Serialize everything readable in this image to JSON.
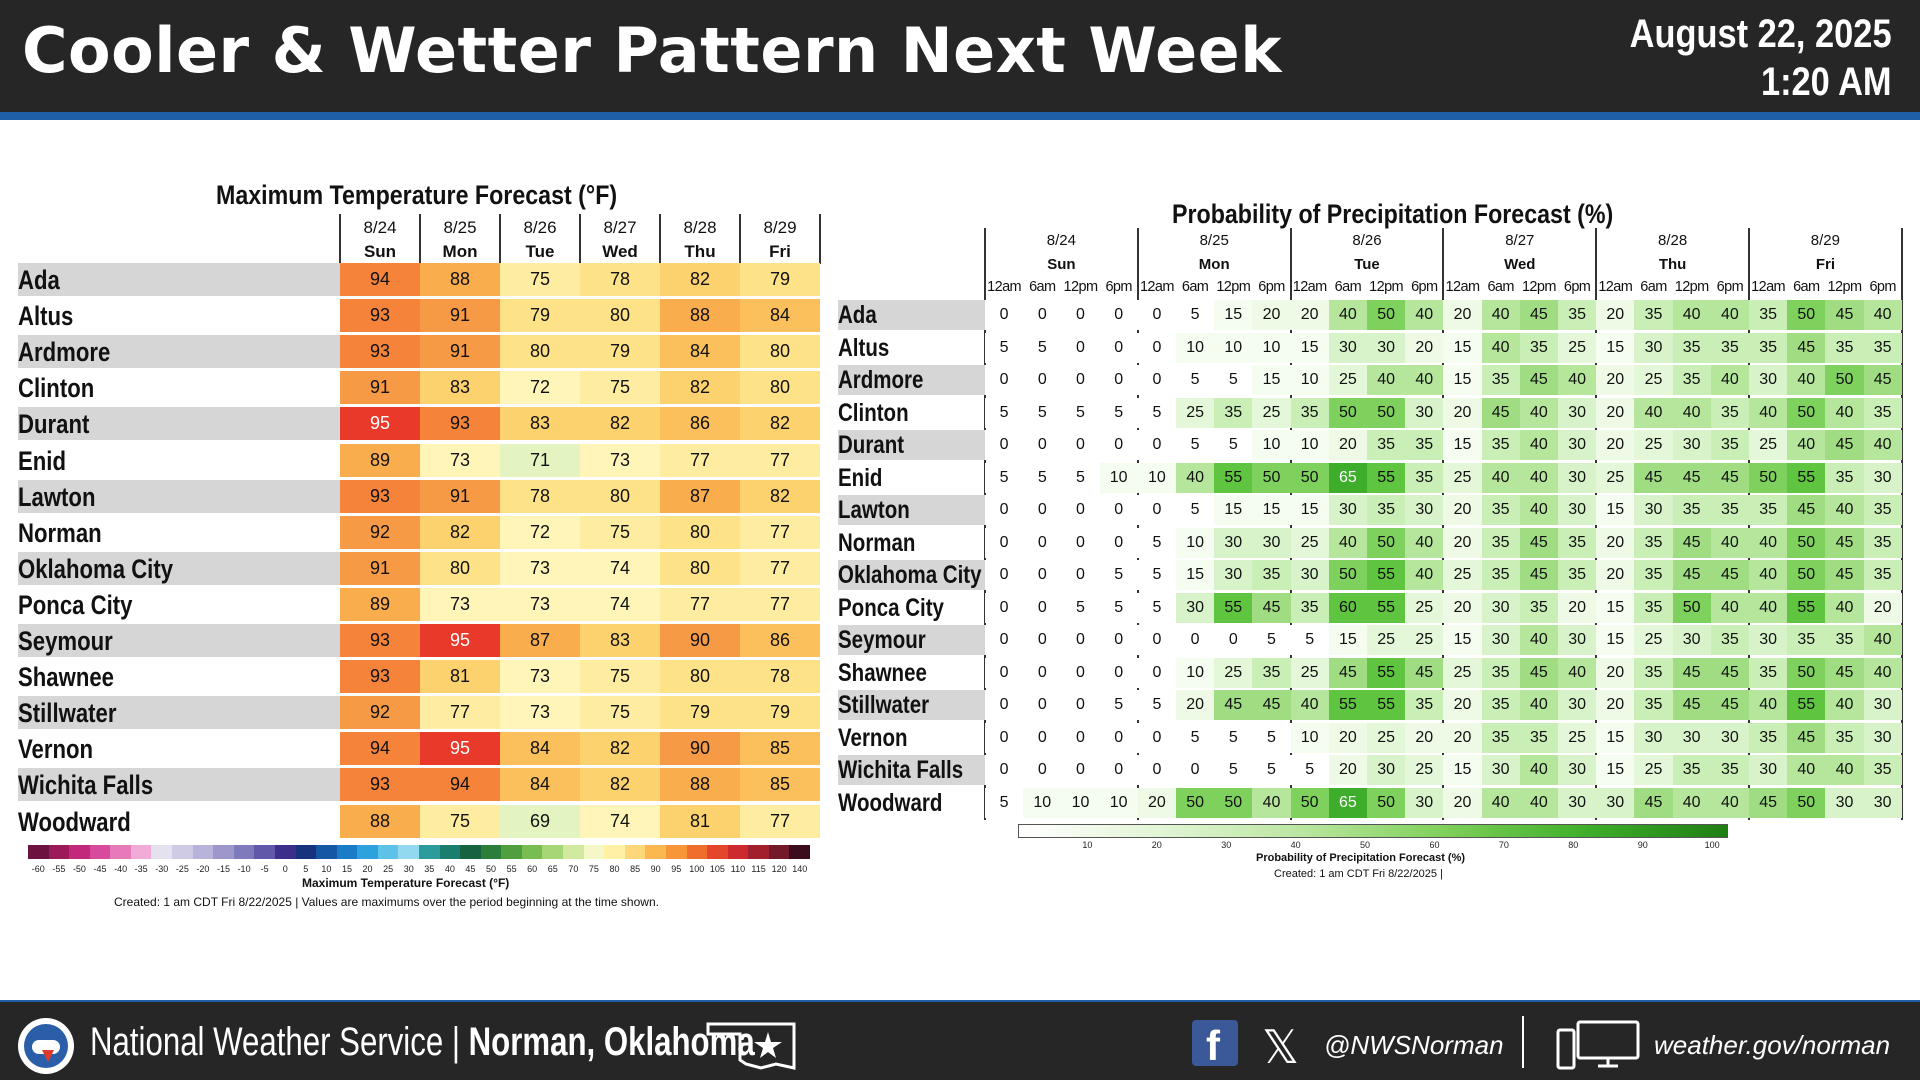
{
  "header": {
    "title": "Cooler & Wetter Pattern Next Week",
    "date": "August 22, 2025",
    "time": "1:20 AM"
  },
  "temperature": {
    "title": "Maximum Temperature Forecast (°F)",
    "dates": [
      "8/24",
      "8/25",
      "8/26",
      "8/27",
      "8/28",
      "8/29"
    ],
    "days": [
      "Sun",
      "Mon",
      "Tue",
      "Wed",
      "Thu",
      "Fri"
    ],
    "rows": [
      {
        "city": "Ada",
        "values": [
          94,
          88,
          75,
          78,
          82,
          79
        ]
      },
      {
        "city": "Altus",
        "values": [
          93,
          91,
          79,
          80,
          88,
          84
        ]
      },
      {
        "city": "Ardmore",
        "values": [
          93,
          91,
          80,
          79,
          84,
          80
        ]
      },
      {
        "city": "Clinton",
        "values": [
          91,
          83,
          72,
          75,
          82,
          80
        ]
      },
      {
        "city": "Durant",
        "values": [
          95,
          93,
          83,
          82,
          86,
          82
        ]
      },
      {
        "city": "Enid",
        "values": [
          89,
          73,
          71,
          73,
          77,
          77
        ]
      },
      {
        "city": "Lawton",
        "values": [
          93,
          91,
          78,
          80,
          87,
          82
        ]
      },
      {
        "city": "Norman",
        "values": [
          92,
          82,
          72,
          75,
          80,
          77
        ]
      },
      {
        "city": "Oklahoma City",
        "values": [
          91,
          80,
          73,
          74,
          80,
          77
        ]
      },
      {
        "city": "Ponca City",
        "values": [
          89,
          73,
          73,
          74,
          77,
          77
        ]
      },
      {
        "city": "Seymour",
        "values": [
          93,
          95,
          87,
          83,
          90,
          86
        ]
      },
      {
        "city": "Shawnee",
        "values": [
          93,
          81,
          73,
          75,
          80,
          78
        ]
      },
      {
        "city": "Stillwater",
        "values": [
          92,
          77,
          73,
          75,
          79,
          79
        ]
      },
      {
        "city": "Vernon",
        "values": [
          94,
          95,
          84,
          82,
          90,
          85
        ]
      },
      {
        "city": "Wichita Falls",
        "values": [
          93,
          94,
          84,
          82,
          88,
          85
        ]
      },
      {
        "city": "Woodward",
        "values": [
          88,
          75,
          69,
          74,
          81,
          77
        ]
      }
    ],
    "scale_ticks": [
      "-60",
      "-55",
      "-50",
      "-45",
      "-40",
      "-35",
      "-30",
      "-25",
      "-20",
      "-15",
      "-10",
      "-5",
      "0",
      "5",
      "10",
      "15",
      "20",
      "25",
      "30",
      "35",
      "40",
      "45",
      "50",
      "55",
      "60",
      "65",
      "70",
      "75",
      "80",
      "85",
      "90",
      "95",
      "100",
      "105",
      "110",
      "115",
      "120",
      "140"
    ],
    "scale_label": "Maximum Temperature Forecast (°F)",
    "caption": "Created: 1 am CDT Fri 8/22/2025  |  Values are maximums over the period beginning at the time shown."
  },
  "precip": {
    "title": "Probability of Precipitation Forecast (%)",
    "dates": [
      "8/24",
      "8/25",
      "8/26",
      "8/27",
      "8/28",
      "8/29"
    ],
    "days": [
      "Sun",
      "Mon",
      "Tue",
      "Wed",
      "Thu",
      "Fri"
    ],
    "times": [
      "12am",
      "6am",
      "12pm",
      "6pm"
    ],
    "rows": [
      {
        "city": "Ada",
        "values": [
          0,
          0,
          0,
          0,
          0,
          5,
          15,
          20,
          20,
          40,
          50,
          40,
          20,
          40,
          45,
          35,
          20,
          35,
          40,
          40,
          35,
          50,
          45,
          40
        ]
      },
      {
        "city": "Altus",
        "values": [
          5,
          5,
          0,
          0,
          0,
          10,
          10,
          10,
          15,
          30,
          30,
          20,
          15,
          40,
          35,
          25,
          15,
          30,
          35,
          35,
          35,
          45,
          35,
          35
        ]
      },
      {
        "city": "Ardmore",
        "values": [
          0,
          0,
          0,
          0,
          0,
          5,
          5,
          15,
          10,
          25,
          40,
          40,
          15,
          35,
          45,
          40,
          20,
          25,
          35,
          40,
          30,
          40,
          50,
          45
        ]
      },
      {
        "city": "Clinton",
        "values": [
          5,
          5,
          5,
          5,
          5,
          25,
          35,
          25,
          35,
          50,
          50,
          30,
          20,
          45,
          40,
          30,
          20,
          40,
          40,
          35,
          40,
          50,
          40,
          35
        ]
      },
      {
        "city": "Durant",
        "values": [
          0,
          0,
          0,
          0,
          0,
          5,
          5,
          10,
          10,
          20,
          35,
          35,
          15,
          35,
          40,
          30,
          20,
          25,
          30,
          35,
          25,
          40,
          45,
          40
        ]
      },
      {
        "city": "Enid",
        "values": [
          5,
          5,
          5,
          10,
          10,
          40,
          55,
          50,
          50,
          65,
          55,
          35,
          25,
          40,
          40,
          30,
          25,
          45,
          45,
          45,
          50,
          55,
          35,
          30
        ]
      },
      {
        "city": "Lawton",
        "values": [
          0,
          0,
          0,
          0,
          0,
          5,
          15,
          15,
          15,
          30,
          35,
          30,
          20,
          35,
          40,
          30,
          15,
          30,
          35,
          35,
          35,
          45,
          40,
          35
        ]
      },
      {
        "city": "Norman",
        "values": [
          0,
          0,
          0,
          0,
          5,
          10,
          30,
          30,
          25,
          40,
          50,
          40,
          20,
          35,
          45,
          35,
          20,
          35,
          45,
          40,
          40,
          50,
          45,
          35
        ]
      },
      {
        "city": "Oklahoma City",
        "values": [
          0,
          0,
          0,
          5,
          5,
          15,
          30,
          35,
          30,
          50,
          55,
          40,
          25,
          35,
          45,
          35,
          20,
          35,
          45,
          45,
          40,
          50,
          45,
          35
        ]
      },
      {
        "city": "Ponca City",
        "values": [
          0,
          0,
          5,
          5,
          5,
          30,
          55,
          45,
          35,
          60,
          55,
          25,
          20,
          30,
          35,
          20,
          15,
          35,
          50,
          40,
          40,
          55,
          40,
          20
        ]
      },
      {
        "city": "Seymour",
        "values": [
          0,
          0,
          0,
          0,
          0,
          0,
          0,
          5,
          5,
          15,
          25,
          25,
          15,
          30,
          40,
          30,
          15,
          25,
          30,
          35,
          30,
          35,
          35,
          40
        ]
      },
      {
        "city": "Shawnee",
        "values": [
          0,
          0,
          0,
          0,
          0,
          10,
          25,
          35,
          25,
          45,
          55,
          45,
          25,
          35,
          45,
          40,
          20,
          35,
          45,
          45,
          35,
          50,
          45,
          40
        ]
      },
      {
        "city": "Stillwater",
        "values": [
          0,
          0,
          0,
          5,
          5,
          20,
          45,
          45,
          40,
          55,
          55,
          35,
          20,
          35,
          40,
          30,
          20,
          35,
          45,
          45,
          40,
          55,
          40,
          30
        ]
      },
      {
        "city": "Vernon",
        "values": [
          0,
          0,
          0,
          0,
          0,
          5,
          5,
          5,
          10,
          20,
          25,
          20,
          20,
          35,
          35,
          25,
          15,
          30,
          30,
          30,
          35,
          45,
          35,
          30
        ]
      },
      {
        "city": "Wichita Falls",
        "values": [
          0,
          0,
          0,
          0,
          0,
          0,
          5,
          5,
          5,
          20,
          30,
          25,
          15,
          30,
          40,
          30,
          15,
          25,
          35,
          35,
          30,
          40,
          40,
          35
        ]
      },
      {
        "city": "Woodward",
        "values": [
          5,
          10,
          10,
          10,
          20,
          50,
          50,
          40,
          50,
          65,
          50,
          30,
          20,
          40,
          40,
          30,
          30,
          45,
          40,
          40,
          45,
          50,
          30,
          30
        ]
      }
    ],
    "scale_ticks": [
      "10",
      "20",
      "30",
      "40",
      "50",
      "60",
      "70",
      "80",
      "90",
      "100"
    ],
    "scale_label": "Probability of Precipitation Forecast (%)",
    "caption": "Created: 1 am CDT Fri 8/22/2025  |"
  },
  "footer": {
    "agency": "National Weather Service | ",
    "office": "Norman, Oklahoma",
    "handle": "@NWSNorman",
    "website": "weather.gov/norman",
    "icons": [
      "nws-logo-icon",
      "oklahoma-star-icon",
      "facebook-icon",
      "x-icon",
      "computer-icon"
    ]
  }
}
